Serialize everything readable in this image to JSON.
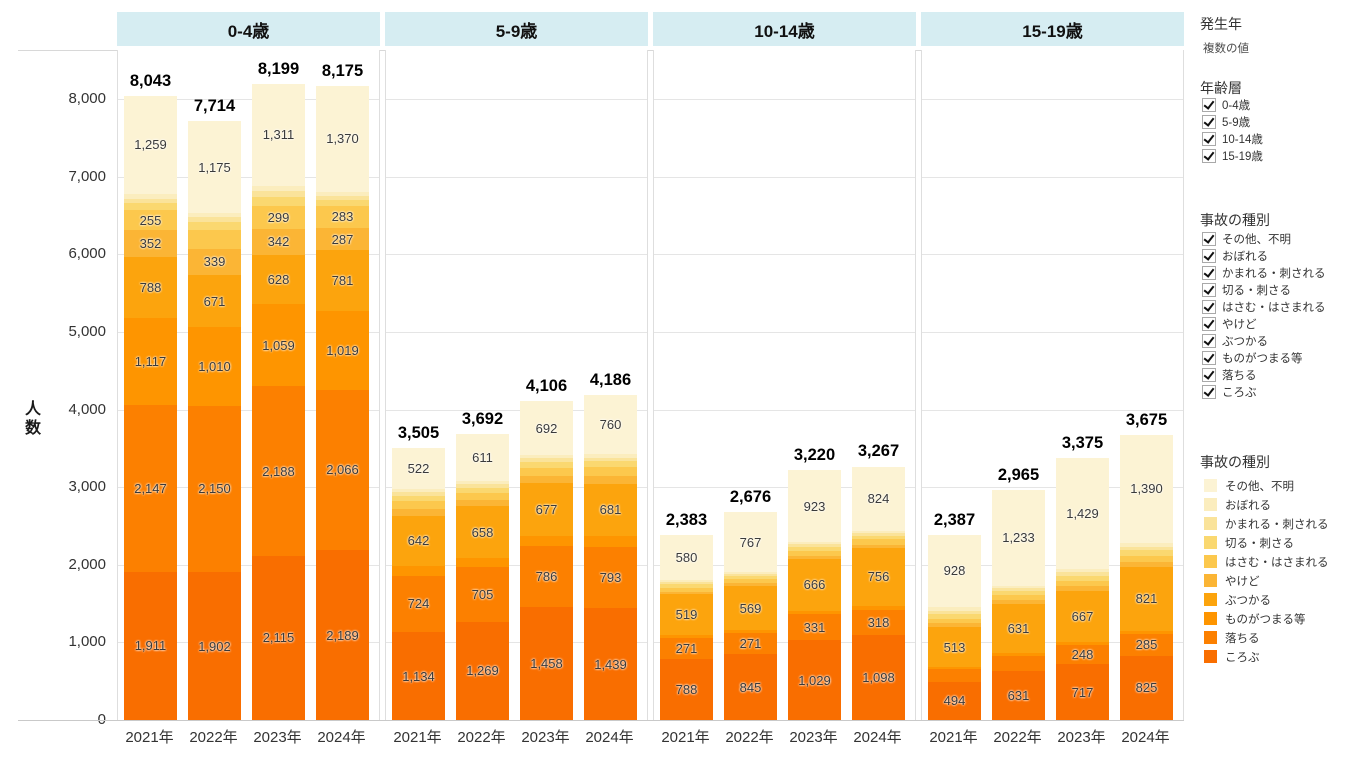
{
  "chart_data": {
    "type": "bar",
    "stacked": true,
    "title": "",
    "ylabel": "人数",
    "xlabel": "",
    "ylim": [
      0,
      8600
    ],
    "y_ticks": [
      0,
      1000,
      2000,
      3000,
      4000,
      5000,
      6000,
      7000,
      8000
    ],
    "grid": "horizontal",
    "legend_position": "right",
    "unlabeled_values_estimated": true,
    "stack_order_bottom_to_top": [
      "ころぶ",
      "落ちる",
      "ものがつまる等",
      "ぶつかる",
      "やけど",
      "はさむ・はさまれる",
      "切る・刺さる",
      "かまれる・刺される",
      "おぼれる",
      "その他、不明"
    ],
    "stack_colors": [
      "#f96e00",
      "#fc8000",
      "#fe9500",
      "#fca40d",
      "#fbb535",
      "#fcc84d",
      "#fad870",
      "#fae39a",
      "#fbedbe",
      "#fcf3d4"
    ],
    "age_groups": [
      {
        "label": "0-4歳",
        "bars": [
          {
            "x": "2021年",
            "total": 8043,
            "values": [
              1911,
              2147,
              1117,
              788,
              352,
              255,
              90,
              60,
              64,
              1259
            ],
            "labeled": [
              1,
              1,
              1,
              1,
              1,
              1,
              0,
              0,
              0,
              1
            ]
          },
          {
            "x": "2022年",
            "total": 7714,
            "values": [
              1902,
              2150,
              1010,
              671,
              339,
              240,
              110,
              60,
              57,
              1175
            ],
            "labeled": [
              1,
              1,
              1,
              1,
              1,
              0,
              0,
              0,
              0,
              1
            ]
          },
          {
            "x": "2023年",
            "total": 8199,
            "values": [
              2115,
              2188,
              1059,
              628,
              342,
              299,
              110,
              75,
              72,
              1311
            ],
            "labeled": [
              1,
              1,
              1,
              1,
              1,
              1,
              0,
              0,
              0,
              1
            ]
          },
          {
            "x": "2024年",
            "total": 8175,
            "values": [
              2189,
              2066,
              1019,
              781,
              287,
              283,
              80,
              50,
              50,
              1370
            ],
            "labeled": [
              1,
              1,
              1,
              1,
              1,
              1,
              0,
              0,
              0,
              1
            ]
          }
        ]
      },
      {
        "label": "5-9歳",
        "bars": [
          {
            "x": "2021年",
            "total": 3505,
            "values": [
              1134,
              724,
              130,
              642,
              90,
              100,
              70,
              50,
              43,
              522
            ],
            "labeled": [
              1,
              1,
              0,
              1,
              0,
              0,
              0,
              0,
              0,
              1
            ]
          },
          {
            "x": "2022年",
            "total": 3692,
            "values": [
              1269,
              705,
              120,
              658,
              85,
              95,
              65,
              45,
              39,
              611
            ],
            "labeled": [
              1,
              1,
              0,
              1,
              0,
              0,
              0,
              0,
              0,
              1
            ]
          },
          {
            "x": "2023年",
            "total": 4106,
            "values": [
              1458,
              786,
              130,
              677,
              95,
              105,
              70,
              50,
              43,
              692
            ],
            "labeled": [
              1,
              1,
              0,
              1,
              0,
              0,
              0,
              0,
              0,
              1
            ]
          },
          {
            "x": "2024年",
            "total": 4186,
            "values": [
              1439,
              793,
              135,
              681,
              100,
              110,
              75,
              50,
              43,
              760
            ],
            "labeled": [
              1,
              1,
              0,
              1,
              0,
              0,
              0,
              0,
              0,
              1
            ]
          }
        ]
      },
      {
        "label": "10-14歳",
        "bars": [
          {
            "x": "2021年",
            "total": 2383,
            "values": [
              788,
              271,
              40,
              519,
              35,
              55,
              40,
              30,
              25,
              580
            ],
            "labeled": [
              1,
              1,
              0,
              1,
              0,
              0,
              0,
              0,
              0,
              1
            ]
          },
          {
            "x": "2022年",
            "total": 2676,
            "values": [
              845,
              271,
              40,
              569,
              35,
              55,
              40,
              30,
              24,
              767
            ],
            "labeled": [
              1,
              1,
              0,
              1,
              0,
              0,
              0,
              0,
              0,
              1
            ]
          },
          {
            "x": "2023年",
            "total": 3220,
            "values": [
              1029,
              331,
              50,
              666,
              40,
              65,
              50,
              35,
              31,
              923
            ],
            "labeled": [
              1,
              1,
              0,
              1,
              0,
              0,
              0,
              0,
              0,
              1
            ]
          },
          {
            "x": "2024年",
            "total": 3267,
            "values": [
              1098,
              318,
              50,
              756,
              40,
              65,
              50,
              35,
              31,
              824
            ],
            "labeled": [
              1,
              1,
              0,
              1,
              0,
              0,
              0,
              0,
              0,
              1
            ]
          }
        ]
      },
      {
        "label": "15-19歳",
        "bars": [
          {
            "x": "2021年",
            "total": 2387,
            "values": [
              494,
              160,
              30,
              513,
              50,
              60,
              55,
              45,
              52,
              928
            ],
            "labeled": [
              1,
              0,
              0,
              1,
              0,
              0,
              0,
              0,
              0,
              1
            ]
          },
          {
            "x": "2022年",
            "total": 2965,
            "values": [
              631,
              200,
              30,
              631,
              50,
              65,
              55,
              35,
              35,
              1233
            ],
            "labeled": [
              1,
              0,
              0,
              1,
              0,
              0,
              0,
              0,
              0,
              1
            ]
          },
          {
            "x": "2023年",
            "total": 3375,
            "values": [
              717,
              248,
              35,
              667,
              55,
              75,
              60,
              45,
              44,
              1429
            ],
            "labeled": [
              1,
              1,
              0,
              1,
              0,
              0,
              0,
              0,
              0,
              1
            ]
          },
          {
            "x": "2024年",
            "total": 3675,
            "values": [
              825,
              285,
              40,
              821,
              60,
              85,
              70,
              50,
              49,
              1390
            ],
            "labeled": [
              1,
              1,
              0,
              1,
              0,
              0,
              0,
              0,
              0,
              1
            ]
          }
        ]
      }
    ]
  },
  "sidebar": {
    "year_filter": {
      "title": "発生年",
      "value": "複数の値"
    },
    "age_filter": {
      "title": "年齢層",
      "items": [
        {
          "label": "0-4歳",
          "checked": true
        },
        {
          "label": "5-9歳",
          "checked": true
        },
        {
          "label": "10-14歳",
          "checked": true
        },
        {
          "label": "15-19歳",
          "checked": true
        }
      ]
    },
    "type_filter": {
      "title": "事故の種別",
      "items": [
        {
          "label": "その他、不明",
          "checked": true
        },
        {
          "label": "おぼれる",
          "checked": true
        },
        {
          "label": "かまれる・刺される",
          "checked": true
        },
        {
          "label": "切る・刺さる",
          "checked": true
        },
        {
          "label": "はさむ・はさまれる",
          "checked": true
        },
        {
          "label": "やけど",
          "checked": true
        },
        {
          "label": "ぶつかる",
          "checked": true
        },
        {
          "label": "ものがつまる等",
          "checked": true
        },
        {
          "label": "落ちる",
          "checked": true
        },
        {
          "label": "ころぶ",
          "checked": true
        }
      ]
    },
    "legend": {
      "title": "事故の種別",
      "items": [
        {
          "label": "その他、不明",
          "color": "#fcf3d4"
        },
        {
          "label": "おぼれる",
          "color": "#fbedbe"
        },
        {
          "label": "かまれる・刺される",
          "color": "#fae39a"
        },
        {
          "label": "切る・刺さる",
          "color": "#fad870"
        },
        {
          "label": "はさむ・はさまれる",
          "color": "#fcc84d"
        },
        {
          "label": "やけど",
          "color": "#fbb535"
        },
        {
          "label": "ぶつかる",
          "color": "#fca40d"
        },
        {
          "label": "ものがつまる等",
          "color": "#fe9500"
        },
        {
          "label": "落ちる",
          "color": "#fc8000"
        },
        {
          "label": "ころぶ",
          "color": "#f96e00"
        }
      ]
    }
  }
}
